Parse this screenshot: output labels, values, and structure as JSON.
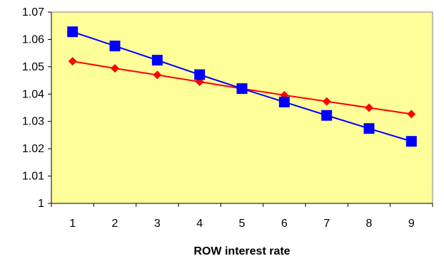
{
  "chart_data": {
    "type": "line",
    "title": "",
    "xlabel": "ROW interest rate",
    "ylabel": "",
    "x": [
      1,
      2,
      3,
      4,
      5,
      6,
      7,
      8,
      9
    ],
    "xlim": [
      0.5,
      9.5
    ],
    "ylim": [
      1,
      1.07
    ],
    "yticks": [
      "1",
      "1.01",
      "1.02",
      "1.03",
      "1.04",
      "1.05",
      "1.06",
      "1.07"
    ],
    "xticks": [
      "1",
      "2",
      "3",
      "4",
      "5",
      "6",
      "7",
      "8",
      "9"
    ],
    "grid": false,
    "legend": "none",
    "plot_background": "#FFFF99",
    "series": [
      {
        "color": "#0000FF",
        "marker": "square",
        "values": [
          1.0628,
          1.0576,
          1.0524,
          1.0471,
          1.042,
          1.0371,
          1.0322,
          1.0274,
          1.0227
        ]
      },
      {
        "color": "#FF0000",
        "marker": "diamond",
        "values": [
          1.052,
          1.0494,
          1.047,
          1.0445,
          1.042,
          1.0396,
          1.0373,
          1.035,
          1.0327
        ]
      }
    ]
  }
}
